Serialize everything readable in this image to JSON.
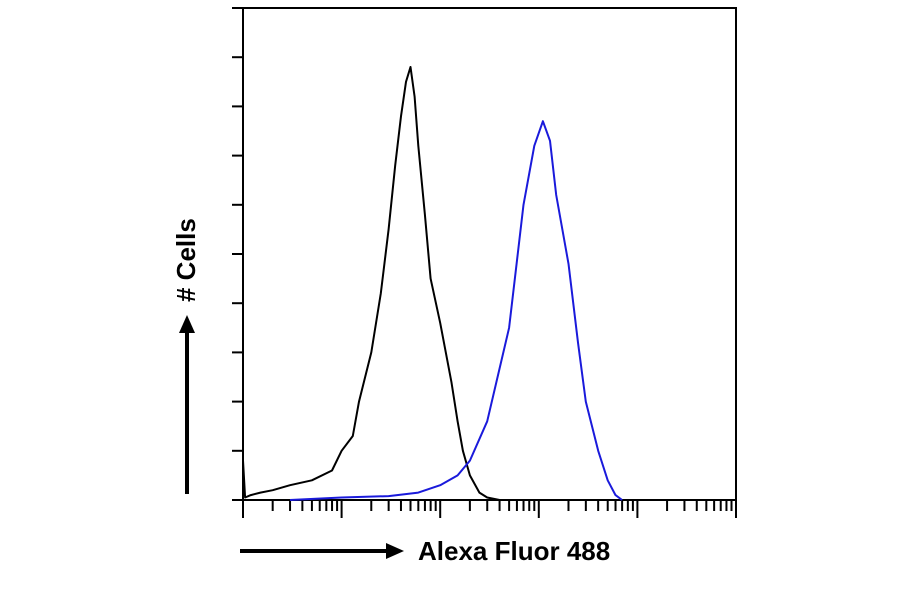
{
  "chart_data": {
    "type": "line",
    "title": "",
    "xlabel": "Alexa Fluor 488",
    "ylabel": "# Cells",
    "x_scale": "log",
    "xlim": [
      1,
      100000
    ],
    "ylim": [
      0,
      100
    ],
    "grid": false,
    "legend": "none",
    "series": [
      {
        "color": "#000000",
        "points": [
          [
            1,
            8
          ],
          [
            1.05,
            0.5
          ],
          [
            1.2,
            1
          ],
          [
            1.5,
            1.5
          ],
          [
            2,
            2
          ],
          [
            3,
            3
          ],
          [
            5,
            4
          ],
          [
            8,
            6
          ],
          [
            10,
            10
          ],
          [
            13,
            13
          ],
          [
            15,
            20
          ],
          [
            20,
            30
          ],
          [
            25,
            42
          ],
          [
            30,
            55
          ],
          [
            35,
            68
          ],
          [
            40,
            78
          ],
          [
            45,
            85
          ],
          [
            50,
            88
          ],
          [
            55,
            82
          ],
          [
            60,
            72
          ],
          [
            70,
            58
          ],
          [
            80,
            45
          ],
          [
            100,
            36
          ],
          [
            130,
            24
          ],
          [
            150,
            16
          ],
          [
            170,
            10
          ],
          [
            200,
            5
          ],
          [
            250,
            1.5
          ],
          [
            300,
            0.5
          ],
          [
            400,
            0
          ]
        ]
      },
      {
        "color": "#1a1adb",
        "points": [
          [
            3,
            0
          ],
          [
            10,
            0.5
          ],
          [
            30,
            0.8
          ],
          [
            60,
            1.5
          ],
          [
            100,
            3
          ],
          [
            150,
            5
          ],
          [
            200,
            8
          ],
          [
            300,
            16
          ],
          [
            500,
            35
          ],
          [
            700,
            60
          ],
          [
            900,
            72
          ],
          [
            1100,
            77
          ],
          [
            1300,
            73
          ],
          [
            1500,
            62
          ],
          [
            2000,
            48
          ],
          [
            2500,
            32
          ],
          [
            3000,
            20
          ],
          [
            4000,
            10
          ],
          [
            5000,
            4
          ],
          [
            6000,
            1
          ],
          [
            7000,
            0
          ]
        ]
      }
    ]
  }
}
